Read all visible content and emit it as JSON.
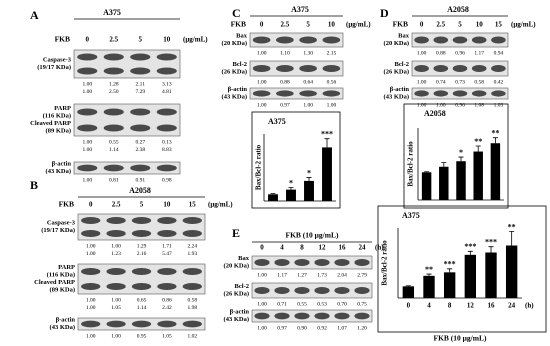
{
  "panels": [
    {
      "label": "A",
      "cell_line": "A375",
      "treatment": "FKB",
      "doses": [
        "0",
        "2.5",
        "5",
        "10"
      ],
      "unit": "(μg/mL)",
      "blots": [
        {
          "labels": [
            "Caspase-3",
            "(19/17 KDa)"
          ],
          "ratios": [
            [
              "1.00",
              "1.28",
              "2.11",
              "3.13"
            ],
            [
              "1.00",
              "2.50",
              "7.29",
              "4.81"
            ]
          ]
        },
        {
          "labels": [
            "PARP",
            "(116 KDa)",
            "Cleaved  PARP",
            "(89 KDa)"
          ],
          "ratios": [
            [
              "1.00",
              "0.55",
              "0.27",
              "0.13"
            ],
            [
              "1.00",
              "1.14",
              "2.38",
              "8.83"
            ]
          ]
        },
        {
          "labels": [
            "β-actin",
            "(43 KDa)"
          ],
          "ratios": [
            [
              "1.00",
              "0.81",
              "0.91",
              "0.98"
            ]
          ]
        }
      ]
    },
    {
      "label": "B",
      "cell_line": "A2058",
      "treatment": "FKB",
      "doses": [
        "0",
        "2.5",
        "5",
        "10",
        "15"
      ],
      "unit": "(μg/mL)",
      "blots": [
        {
          "labels": [
            "Caspase-3",
            "(19/17 KDa)"
          ],
          "ratios": [
            [
              "1.00",
              "1.00",
              "1.29",
              "1.71",
              "2.24"
            ],
            [
              "1.00",
              "1.23",
              "2.16",
              "5.47",
              "1.93"
            ]
          ]
        },
        {
          "labels": [
            "PARP",
            "(116 KDa)",
            "Cleaved  PARP",
            "(89 KDa)"
          ],
          "ratios": [
            [
              "1.00",
              "1.00",
              "0.65",
              "0.86",
              "0.58"
            ],
            [
              "1.00",
              "1.05",
              "1.14",
              "2.42",
              "1.98"
            ]
          ]
        },
        {
          "labels": [
            "β-actin",
            "(43 KDa)"
          ],
          "ratios": [
            [
              "1.00",
              "1.00",
              "0.95",
              "1.05",
              "1.02"
            ]
          ]
        }
      ]
    },
    {
      "label": "C",
      "cell_line": "A375",
      "treatment": "FKB",
      "doses": [
        "0",
        "2.5",
        "5",
        "10"
      ],
      "unit": "(μg/mL)",
      "blots": [
        {
          "labels": [
            "Bax",
            "(20 KDa)"
          ],
          "ratios": [
            [
              "1.00",
              "1.10",
              "1.30",
              "2.15"
            ]
          ]
        },
        {
          "labels": [
            "Bcl-2",
            "(26 KDa)"
          ],
          "ratios": [
            [
              "1.00",
              "0.88",
              "0.64",
              "0.56"
            ]
          ]
        },
        {
          "labels": [
            "β-actin",
            "(43 KDa)"
          ],
          "ratios": [
            [
              "1.00",
              "0.97",
              "1.00",
              "1.00"
            ]
          ]
        }
      ],
      "chart": {
        "type": "bar",
        "title": "A375",
        "y_label": "Bax/Bcl-2 ratio",
        "color": "#000000",
        "values": [
          1,
          1.7,
          3,
          8
        ],
        "errors": [
          0.1,
          0.3,
          0.5,
          1.3
        ],
        "significance": [
          null,
          "*",
          "*",
          "***"
        ],
        "ylim": [
          0,
          10
        ]
      }
    },
    {
      "label": "D",
      "cell_line": "A2058",
      "treatment": "FKB",
      "doses": [
        "0",
        "2.5",
        "5",
        "10",
        "15"
      ],
      "unit": "(μg/mL)",
      "blots": [
        {
          "labels": [
            "Bax",
            "(20 KDa)"
          ],
          "ratios": [
            [
              "1.00",
              "0.88",
              "0.96",
              "1.17",
              "0.94"
            ]
          ]
        },
        {
          "labels": [
            "Bcl-2",
            "(26 KDa)"
          ],
          "ratios": [
            [
              "1.00",
              "0.74",
              "0.73",
              "0.58",
              "0.42"
            ]
          ]
        },
        {
          "labels": [
            "β-actin",
            "(43 KDa)"
          ],
          "ratios": [
            [
              "1.00",
              "1.00",
              "0.96",
              "1.08",
              "1.03"
            ]
          ]
        }
      ],
      "chart": {
        "type": "bar",
        "title": "A2058",
        "y_label": "Bax/Bcl-2 ratio",
        "color": "#000000",
        "values": [
          1,
          1.2,
          1.4,
          1.75,
          2.05
        ],
        "errors": [
          0.02,
          0.15,
          0.15,
          0.2,
          0.2
        ],
        "significance": [
          null,
          null,
          "*",
          "**",
          "**"
        ],
        "ylim": [
          0,
          2.6
        ]
      }
    },
    {
      "label": "E",
      "treatment": "FKB (10 μg/mL)",
      "doses": [
        "0",
        "4",
        "8",
        "12",
        "16",
        "24"
      ],
      "unit": "(h)",
      "blots": [
        {
          "labels": [
            "Bax",
            "(20 KDa)"
          ],
          "ratios": [
            [
              "1.00",
              "1.17",
              "1.27",
              "1.73",
              "2.04",
              "2.79"
            ]
          ]
        },
        {
          "labels": [
            "Bcl-2",
            "(26 KDa)"
          ],
          "ratios": [
            [
              "1.00",
              "0.71",
              "0.55",
              "0.53",
              "0.70",
              "0.75"
            ]
          ]
        },
        {
          "labels": [
            "β-actin",
            "(43 KDa)"
          ],
          "ratios": [
            [
              "1.00",
              "0.97",
              "0.90",
              "0.92",
              "1.07",
              "1.20"
            ]
          ]
        }
      ],
      "chart": {
        "type": "bar",
        "title": "A375",
        "y_label": "Bax/Bcl-2 ratio",
        "x_label": "FKB (10 μg/mL)",
        "color": "#000000",
        "categories": [
          "0",
          "4",
          "8",
          "12",
          "16",
          "24"
        ],
        "x_unit": "(h)",
        "values": [
          1,
          1.9,
          2.2,
          3.7,
          3.9,
          4.5
        ],
        "errors": [
          0.05,
          0.15,
          0.3,
          0.3,
          0.5,
          1.2
        ],
        "significance": [
          null,
          "**",
          "***",
          "***",
          "***",
          "**"
        ],
        "ylim": [
          0,
          6
        ]
      }
    }
  ]
}
